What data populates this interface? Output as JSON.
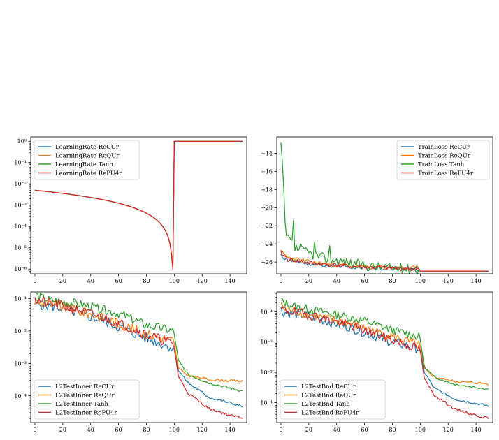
{
  "figure": {
    "colors": {
      "ReCUr": "#1f77b4",
      "ReQUr": "#ff7f0e",
      "Tanh": "#2ca02c",
      "RePU4r": "#d62728"
    }
  },
  "chart_data": [
    {
      "type": "line",
      "yscale": "log",
      "legend_position": "upper-left",
      "xlim": [
        -3,
        152
      ],
      "ylim": [
        6e-07,
        1.6
      ],
      "xticks": [
        0,
        20,
        40,
        60,
        80,
        100,
        120,
        140
      ],
      "yticks": [
        1e-06,
        1e-05,
        0.0001,
        0.001,
        0.01,
        0.1,
        1
      ],
      "ytick_labels": [
        "10⁻⁶",
        "10⁻⁵",
        "10⁻⁴",
        "10⁻³",
        "10⁻²",
        "10⁻¹",
        "10⁰"
      ],
      "series": [
        {
          "name": "LearningRate ReCUr",
          "key": "ReCUr",
          "profile": "lr"
        },
        {
          "name": "LearningRate ReQUr",
          "key": "ReQUr",
          "profile": "lr"
        },
        {
          "name": "LearningRate Tanh",
          "key": "Tanh",
          "profile": "lr"
        },
        {
          "name": "LearningRate RePU4r",
          "key": "RePU4r",
          "profile": "lr"
        }
      ],
      "description_points": {
        "start": [
          0,
          0.005
        ],
        "min": [
          99,
          1e-06
        ],
        "after": [
          100,
          1.0
        ],
        "end": [
          149,
          1.0
        ]
      }
    },
    {
      "type": "line",
      "yscale": "linear",
      "legend_position": "upper-right",
      "xlim": [
        -3,
        152
      ],
      "ylim": [
        -27.3,
        -12.2
      ],
      "xticks": [
        0,
        20,
        40,
        60,
        80,
        100,
        120,
        140
      ],
      "yticks": [
        -26,
        -24,
        -22,
        -20,
        -18,
        -16,
        -14
      ],
      "ytick_labels": [
        "−26",
        "−24",
        "−22",
        "−20",
        "−18",
        "−16",
        "−14"
      ],
      "series": [
        {
          "name": "TrainLoss ReCUr",
          "key": "ReCUr",
          "anchors": [
            [
              0,
              -25.3
            ],
            [
              5,
              -25.8
            ],
            [
              20,
              -26.2
            ],
            [
              50,
              -26.6
            ],
            [
              99,
              -26.8
            ],
            [
              100,
              -27.0
            ],
            [
              149,
              -27.0
            ]
          ],
          "noise": 0.22,
          "seed": 11
        },
        {
          "name": "TrainLoss ReQUr",
          "key": "ReQUr",
          "anchors": [
            [
              0,
              -24.9
            ],
            [
              5,
              -25.5
            ],
            [
              20,
              -26.0
            ],
            [
              50,
              -26.5
            ],
            [
              99,
              -26.7
            ],
            [
              100,
              -27.0
            ],
            [
              149,
              -27.0
            ]
          ],
          "noise": 0.25,
          "seed": 23
        },
        {
          "name": "TrainLoss Tanh",
          "key": "Tanh",
          "anchors": [
            [
              0,
              -13.0
            ],
            [
              2,
              -18.0
            ],
            [
              4,
              -23.0
            ],
            [
              10,
              -24.5
            ],
            [
              30,
              -25.5
            ],
            [
              60,
              -26.4
            ],
            [
              99,
              -26.8
            ],
            [
              100,
              -27.0
            ],
            [
              149,
              -27.0
            ]
          ],
          "noise": 0.55,
          "seed": 37,
          "spikes": [
            [
              3,
              -21.7
            ],
            [
              5,
              -23.0
            ],
            [
              9,
              -21.4
            ],
            [
              14,
              -24.0
            ],
            [
              24,
              -23.8
            ],
            [
              35,
              -24.2
            ]
          ]
        },
        {
          "name": "TrainLoss RePU4r",
          "key": "RePU4r",
          "anchors": [
            [
              0,
              -25.0
            ],
            [
              5,
              -25.7
            ],
            [
              20,
              -26.1
            ],
            [
              50,
              -26.5
            ],
            [
              99,
              -26.8
            ],
            [
              100,
              -27.0
            ],
            [
              149,
              -27.0
            ]
          ],
          "noise": 0.25,
          "seed": 41
        }
      ]
    },
    {
      "type": "line",
      "yscale": "log",
      "legend_position": "lower-left",
      "xlim": [
        -3,
        152
      ],
      "ylim": [
        1.5e-05,
        0.16
      ],
      "xticks": [
        0,
        20,
        40,
        60,
        80,
        100,
        120,
        140
      ],
      "yticks": [
        0.0001,
        0.001,
        0.01,
        0.1
      ],
      "ytick_labels": [
        "10⁻⁴",
        "10⁻³",
        "10⁻²",
        "10⁻¹"
      ],
      "series": [
        {
          "name": "L2TestInner ReCUr",
          "key": "ReCUr",
          "anchors": [
            [
              0,
              0.07
            ],
            [
              20,
              0.05
            ],
            [
              50,
              0.02
            ],
            [
              80,
              0.006
            ],
            [
              99,
              0.003
            ],
            [
              100,
              0.0025
            ],
            [
              103,
              0.0006
            ],
            [
              110,
              0.00025
            ],
            [
              125,
              9e-05
            ],
            [
              140,
              6e-05
            ],
            [
              149,
              4.7e-05
            ]
          ],
          "noise": 0.16,
          "seed": 5
        },
        {
          "name": "L2TestInner ReQUr",
          "key": "ReQUr",
          "anchors": [
            [
              0,
              0.08
            ],
            [
              20,
              0.055
            ],
            [
              50,
              0.025
            ],
            [
              80,
              0.008
            ],
            [
              99,
              0.005
            ],
            [
              100,
              0.004
            ],
            [
              103,
              0.0007
            ],
            [
              110,
              0.00042
            ],
            [
              125,
              0.00032
            ],
            [
              149,
              0.00028
            ]
          ],
          "noise": 0.16,
          "seed": 9
        },
        {
          "name": "L2TestInner Tanh",
          "key": "Tanh",
          "anchors": [
            [
              0,
              0.13
            ],
            [
              10,
              0.09
            ],
            [
              30,
              0.07
            ],
            [
              60,
              0.035
            ],
            [
              80,
              0.015
            ],
            [
              99,
              0.01
            ],
            [
              100,
              0.008
            ],
            [
              103,
              0.0012
            ],
            [
              110,
              0.00045
            ],
            [
              125,
              0.00025
            ],
            [
              149,
              0.00014
            ]
          ],
          "noise": 0.14,
          "seed": 14
        },
        {
          "name": "L2TestInner RePU4r",
          "key": "RePU4r",
          "anchors": [
            [
              0,
              0.09
            ],
            [
              20,
              0.06
            ],
            [
              50,
              0.025
            ],
            [
              80,
              0.008
            ],
            [
              99,
              0.004
            ],
            [
              100,
              0.003
            ],
            [
              103,
              0.0004
            ],
            [
              110,
              0.00012
            ],
            [
              125,
              4e-05
            ],
            [
              140,
              2.5e-05
            ],
            [
              149,
              2.1e-05
            ]
          ],
          "noise": 0.16,
          "seed": 21
        }
      ],
      "spike": {
        "x": 0,
        "Tanh": 0.19,
        "ReCUr": 0.1,
        "RePU4r": 0.11
      }
    },
    {
      "type": "line",
      "yscale": "log",
      "legend_position": "lower-left",
      "xlim": [
        -3,
        152
      ],
      "ylim": [
        2.2e-05,
        0.45
      ],
      "xticks": [
        0,
        20,
        40,
        60,
        80,
        100,
        120,
        140
      ],
      "yticks": [
        0.0001,
        0.001,
        0.01,
        0.1
      ],
      "ytick_labels": [
        "10⁻⁴",
        "10⁻³",
        "10⁻²",
        "10⁻¹"
      ],
      "series": [
        {
          "name": "L2TestBnd ReCUr",
          "key": "ReCUr",
          "anchors": [
            [
              0,
              0.1
            ],
            [
              20,
              0.07
            ],
            [
              50,
              0.03
            ],
            [
              80,
              0.01
            ],
            [
              99,
              0.006
            ],
            [
              100,
              0.005
            ],
            [
              103,
              0.001
            ],
            [
              110,
              0.0003
            ],
            [
              125,
              0.00013
            ],
            [
              149,
              7.8e-05
            ]
          ],
          "noise": 0.16,
          "seed": 6
        },
        {
          "name": "L2TestBnd ReQUr",
          "key": "ReQUr",
          "anchors": [
            [
              0,
              0.13
            ],
            [
              20,
              0.08
            ],
            [
              50,
              0.04
            ],
            [
              80,
              0.015
            ],
            [
              99,
              0.008
            ],
            [
              100,
              0.007
            ],
            [
              103,
              0.0013
            ],
            [
              110,
              0.0007
            ],
            [
              125,
              0.0005
            ],
            [
              149,
              0.00042
            ]
          ],
          "noise": 0.15,
          "seed": 8
        },
        {
          "name": "L2TestBnd Tanh",
          "key": "Tanh",
          "anchors": [
            [
              0,
              0.22
            ],
            [
              10,
              0.15
            ],
            [
              30,
              0.1
            ],
            [
              60,
              0.05
            ],
            [
              80,
              0.025
            ],
            [
              99,
              0.015
            ],
            [
              100,
              0.012
            ],
            [
              103,
              0.0015
            ],
            [
              110,
              0.0007
            ],
            [
              125,
              0.0004
            ],
            [
              149,
              0.00028
            ]
          ],
          "noise": 0.14,
          "seed": 13
        },
        {
          "name": "L2TestBnd RePU4r",
          "key": "RePU4r",
          "anchors": [
            [
              0,
              0.12
            ],
            [
              20,
              0.08
            ],
            [
              50,
              0.035
            ],
            [
              80,
              0.012
            ],
            [
              99,
              0.006
            ],
            [
              100,
              0.005
            ],
            [
              103,
              0.0006
            ],
            [
              110,
              0.00018
            ],
            [
              125,
              6e-05
            ],
            [
              140,
              3.8e-05
            ],
            [
              149,
              3e-05
            ]
          ],
          "noise": 0.16,
          "seed": 19
        }
      ],
      "spike": {
        "x": 0,
        "Tanh": 0.28,
        "ReQUr": 0.2,
        "ReCUr": 0.14
      }
    }
  ]
}
